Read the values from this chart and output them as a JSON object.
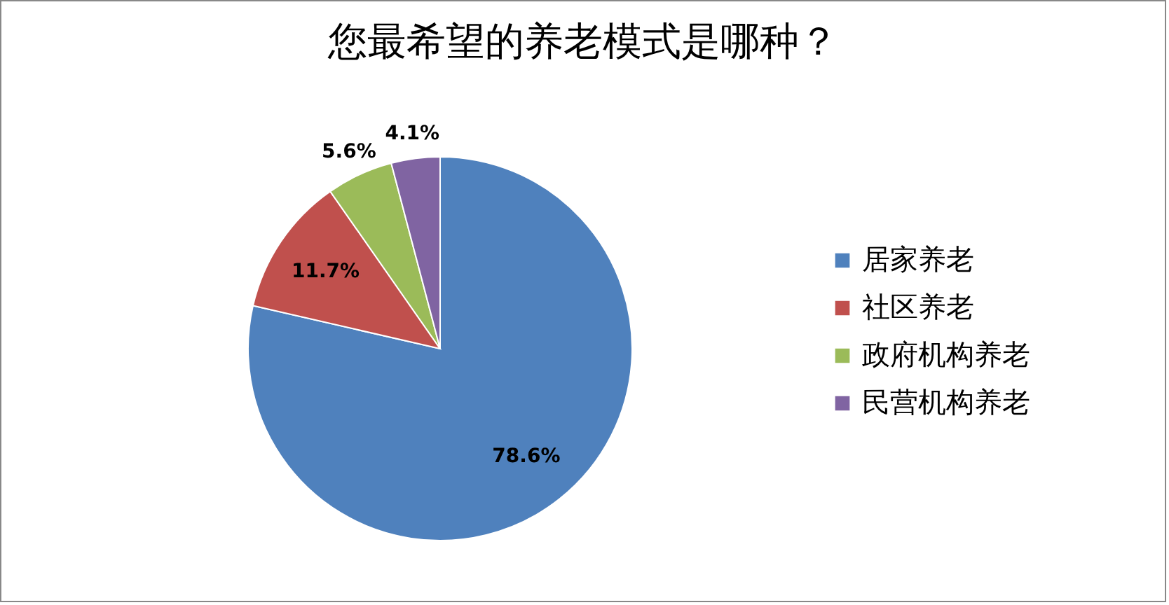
{
  "chart_data": {
    "type": "pie",
    "title": "您最希望的养老模式是哪种？",
    "categories": [
      "居家养老",
      "社区养老",
      "政府机构养老",
      "民营机构养老"
    ],
    "values": [
      78.6,
      11.7,
      5.6,
      4.1
    ],
    "colors": [
      "#4f81bd",
      "#c0504d",
      "#9bbb59",
      "#8064a2"
    ],
    "value_labels": [
      "78.6%",
      "11.7%",
      "5.6%",
      "4.1%"
    ],
    "legend": "right"
  }
}
